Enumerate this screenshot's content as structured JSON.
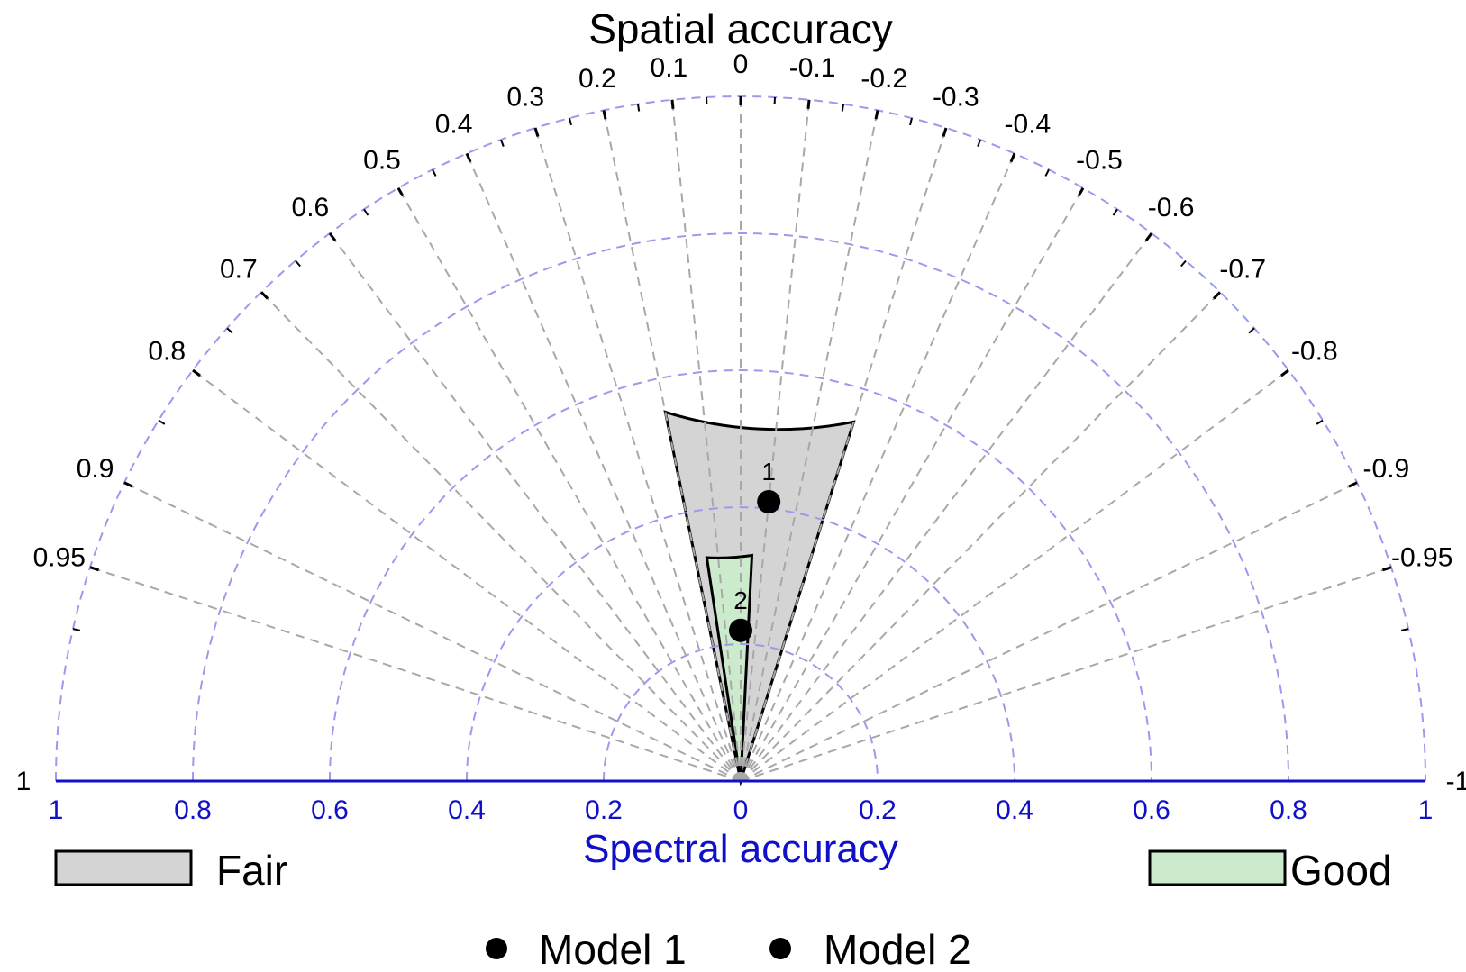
{
  "chart_data": {
    "type": "polar-scatter",
    "title": "Spatial accuracy",
    "xlabel": "Spectral accuracy",
    "angular_ticks": [
      "-1",
      "-0.95",
      "-0.9",
      "-0.8",
      "-0.7",
      "-0.6",
      "-0.5",
      "-0.4",
      "-0.3",
      "-0.2",
      "-0.1",
      "0",
      "0.1",
      "0.2",
      "0.3",
      "0.4",
      "0.5",
      "0.6",
      "0.7",
      "0.8",
      "0.9",
      "0.95",
      "1"
    ],
    "radial_ticks_left": [
      "1",
      "0.8",
      "0.6",
      "0.4",
      "0.2"
    ],
    "radial_ticks_right": [
      "0",
      "0.2",
      "0.4",
      "0.6",
      "0.8",
      "1"
    ],
    "radial_range": [
      0,
      1
    ],
    "angular_range": [
      -1,
      1
    ],
    "regions": [
      {
        "name": "Fair",
        "angle_min": -0.3,
        "angle_max": 0.2,
        "radius_max": 0.55,
        "color": "#d4d4d4"
      },
      {
        "name": "Good",
        "angle_min": -0.05,
        "angle_max": 0.15,
        "radius_max": 0.33,
        "color": "#ccebcc"
      }
    ],
    "points": [
      {
        "label": "1",
        "series": "Model 1",
        "spatial": -0.1,
        "spectral": 0.41
      },
      {
        "label": "2",
        "series": "Model 2",
        "spatial": 0.0,
        "spectral": 0.22
      }
    ],
    "legend": {
      "regions": [
        "Fair",
        "Good"
      ],
      "series": [
        "Model 1",
        "Model 2"
      ]
    },
    "grid": true,
    "colors": {
      "axis": "#1010c8",
      "radial_grid": "#9a9aee",
      "angular_grid": "#a8a8a8",
      "point": "#000000"
    }
  }
}
